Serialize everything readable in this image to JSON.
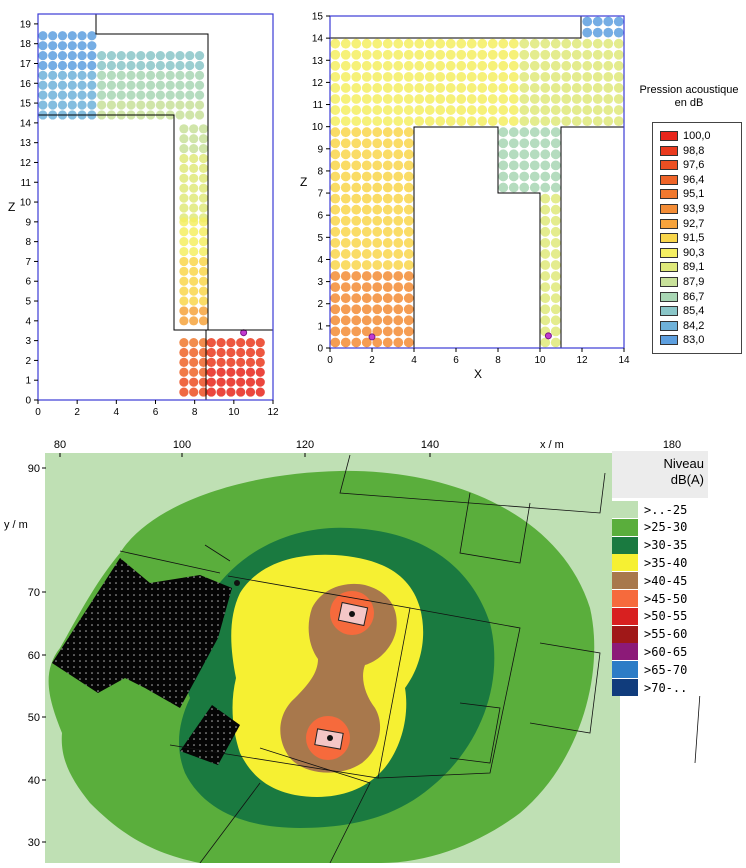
{
  "plot1": {
    "xlabel": "",
    "ylabel": "Z",
    "x_ticks": [
      "0",
      "2",
      "4",
      "6",
      "8",
      "10",
      "12"
    ],
    "y_ticks": [
      "0",
      "1",
      "2",
      "3",
      "4",
      "5",
      "6",
      "7",
      "8",
      "9",
      "10",
      "11",
      "12",
      "13",
      "14",
      "15",
      "16",
      "17",
      "18",
      "19"
    ]
  },
  "plot2": {
    "xlabel": "X",
    "ylabel": "Z",
    "x_ticks": [
      "0",
      "2",
      "4",
      "6",
      "8",
      "10",
      "12",
      "14"
    ],
    "y_ticks": [
      "0",
      "1",
      "2",
      "3",
      "4",
      "5",
      "6",
      "7",
      "8",
      "9",
      "10",
      "11",
      "12",
      "13",
      "14",
      "15"
    ]
  },
  "legend1": {
    "title_line1": "Pression acoustique",
    "title_line2": "en dB",
    "items": [
      {
        "label": "100,0",
        "color": "#e8261c"
      },
      {
        "label": "98,8",
        "color": "#ea3a1e"
      },
      {
        "label": "97,6",
        "color": "#ec4f22"
      },
      {
        "label": "96,4",
        "color": "#ee6428"
      },
      {
        "label": "95,1",
        "color": "#f0782e"
      },
      {
        "label": "93,9",
        "color": "#f38c35"
      },
      {
        "label": "92,7",
        "color": "#f6a33c"
      },
      {
        "label": "91,5",
        "color": "#f9d64b"
      },
      {
        "label": "90,3",
        "color": "#f5ef62"
      },
      {
        "label": "89,1",
        "color": "#dfe97a"
      },
      {
        "label": "87,9",
        "color": "#c8e19a"
      },
      {
        "label": "86,7",
        "color": "#a8d6b4"
      },
      {
        "label": "85,4",
        "color": "#8ac6c8"
      },
      {
        "label": "84,2",
        "color": "#6eb1d9"
      },
      {
        "label": "83,0",
        "color": "#5d9fdf"
      }
    ]
  },
  "plot3": {
    "x_ticks": [
      "80",
      "100",
      "120",
      "140",
      "180"
    ],
    "xlabel": "x / m",
    "y_ticks": [
      "90",
      "70",
      "60",
      "50",
      "40",
      "30"
    ],
    "ylabel": "y / m"
  },
  "legend2": {
    "title_line1": "Niveau",
    "title_line2": "dB(A)",
    "items": [
      {
        "label": ">..-25",
        "color": "#bfe0b4"
      },
      {
        "label": ">25-30",
        "color": "#5aae3c"
      },
      {
        "label": ">30-35",
        "color": "#1a7a40"
      },
      {
        "label": ">35-40",
        "color": "#f6f032"
      },
      {
        "label": ">40-45",
        "color": "#a8784c"
      },
      {
        "label": ">45-50",
        "color": "#f66a3c"
      },
      {
        "label": ">50-55",
        "color": "#d82020"
      },
      {
        "label": ">55-60",
        "color": "#a01818"
      },
      {
        "label": ">60-65",
        "color": "#8c1a78"
      },
      {
        "label": ">65-70",
        "color": "#2c7cc6"
      },
      {
        "label": ">70-..",
        "color": "#103c7c"
      }
    ]
  },
  "chart_data": [
    {
      "type": "scatter",
      "xlabel": "",
      "ylabel": "Z",
      "xlim": [
        0,
        12
      ],
      "ylim": [
        0,
        19
      ],
      "regions": [
        {
          "x": [
            0,
            3
          ],
          "z": [
            14.2,
            18.8
          ],
          "level_db": [
            83.0,
            84.2
          ]
        },
        {
          "x": [
            3,
            8.6
          ],
          "z": [
            14.2,
            17.8
          ],
          "level_db": [
            85.4,
            87.9
          ]
        },
        {
          "x": [
            7.2,
            8.6
          ],
          "z": [
            9,
            14
          ],
          "level_db": [
            88,
            89.5
          ]
        },
        {
          "x": [
            7.2,
            8.6
          ],
          "z": [
            3.8,
            9
          ],
          "level_db": [
            90,
            92.5
          ]
        },
        {
          "x": [
            7.2,
            8.6
          ],
          "z": [
            0.2,
            3.3
          ],
          "level_db": [
            95.1,
            97.6
          ]
        },
        {
          "x": [
            8.6,
            11.8
          ],
          "z": [
            0.2,
            3.3
          ],
          "level_db": [
            98.8,
            100.0
          ]
        }
      ],
      "sources": [
        {
          "x": 10.5,
          "z": 3.4
        }
      ]
    },
    {
      "type": "scatter",
      "xlabel": "X",
      "ylabel": "Z",
      "xlim": [
        0,
        14
      ],
      "ylim": [
        0,
        15
      ],
      "regions": [
        {
          "x": [
            0.2,
            4
          ],
          "z": [
            0.2,
            3.3
          ],
          "level_db": [
            93.9,
            95.1
          ]
        },
        {
          "x": [
            0.2,
            4
          ],
          "z": [
            3.5,
            10
          ],
          "level_db": [
            91.5,
            92.7
          ]
        },
        {
          "x": [
            0.2,
            12
          ],
          "z": [
            10,
            13.8
          ],
          "level_db": [
            89.1,
            90.3
          ]
        },
        {
          "x": [
            8,
            10
          ],
          "z": [
            7.2,
            10
          ],
          "level_db": [
            86.7,
            87.9
          ]
        },
        {
          "x": [
            10.2,
            11
          ],
          "z": [
            0.2,
            7
          ],
          "level_db": [
            88,
            89.5
          ]
        },
        {
          "x": [
            12,
            14
          ],
          "z": [
            14,
            14.8
          ],
          "level_db": [
            83.0,
            84.2
          ]
        }
      ],
      "sources": [
        {
          "x": 2.0,
          "z": 0.5
        },
        {
          "x": 10.4,
          "z": 0.55
        }
      ]
    },
    {
      "type": "heatmap",
      "xlabel": "x / m",
      "ylabel": "y / m",
      "xlim": [
        70,
        180
      ],
      "ylim": [
        25,
        93
      ],
      "sources": [
        {
          "x": 138,
          "y": 66
        },
        {
          "x": 131,
          "y": 47
        }
      ],
      "levels": [
        ">..-25",
        ">25-30",
        ">30-35",
        ">35-40",
        ">40-45",
        ">45-50",
        ">50-55",
        ">55-60",
        ">60-65",
        ">65-70",
        ">70-.."
      ]
    }
  ]
}
